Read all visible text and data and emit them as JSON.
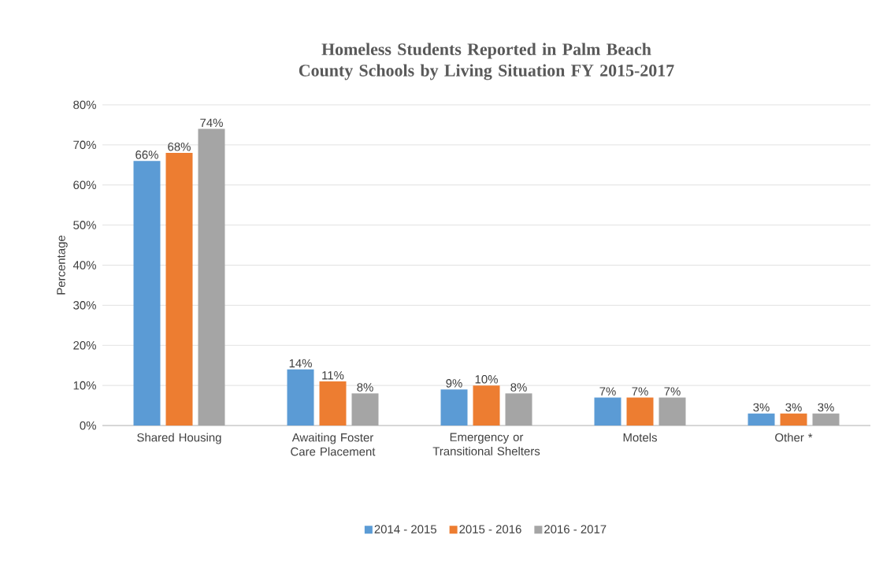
{
  "chart_data": {
    "type": "bar",
    "title": "Homeless Students Reported in Palm Beach County Schools by Living Situation FY 2015-2017",
    "ylabel": "Percentage",
    "categories": [
      "Shared Housing",
      "Awaiting Foster Care Placement",
      "Emergency or Transitional Shelters",
      "Motels",
      "Other *"
    ],
    "series": [
      {
        "name": "2014 - 2015",
        "color": "#5b9bd5",
        "values": [
          66,
          14,
          9,
          7,
          3
        ],
        "value_labels": [
          "66%",
          "14%",
          "9%",
          "7%",
          "3%"
        ]
      },
      {
        "name": "2015 - 2016",
        "color": "#ed7d31",
        "values": [
          68,
          11,
          10,
          7,
          3
        ],
        "value_labels": [
          "68%",
          "11%",
          "10%",
          "7%",
          "3%"
        ]
      },
      {
        "name": "2016 - 2017",
        "color": "#a5a5a5",
        "values": [
          74,
          8,
          8,
          7,
          3
        ],
        "value_labels": [
          "74%",
          "8%",
          "8%",
          "7%",
          "3%"
        ]
      }
    ],
    "ylim": [
      0,
      80
    ],
    "yticks": [
      {
        "value": 0,
        "label": "0%"
      },
      {
        "value": 10,
        "label": "10%"
      },
      {
        "value": 20,
        "label": "20%"
      },
      {
        "value": 30,
        "label": "30%"
      },
      {
        "value": 40,
        "label": "40%"
      },
      {
        "value": 50,
        "label": "50%"
      },
      {
        "value": 60,
        "label": "60%"
      },
      {
        "value": 70,
        "label": "70%"
      },
      {
        "value": 80,
        "label": "80%"
      }
    ],
    "grid": "y",
    "legend": "bottom"
  }
}
